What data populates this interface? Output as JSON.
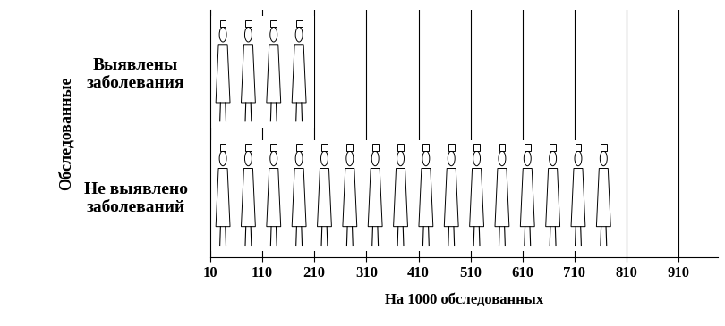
{
  "chart_data": {
    "type": "bar",
    "orientation": "horizontal",
    "categories": [
      "Выявлены\nзаболевания",
      "Не выявлено\nзаболеваний"
    ],
    "values": [
      210,
      790
    ],
    "color": "#ffffff",
    "x_label": "На 1000 обследованных",
    "y_label": "Обследованные",
    "xlim": [
      10,
      985
    ],
    "xticks": [
      10,
      110,
      210,
      310,
      410,
      510,
      610,
      710,
      810,
      910
    ],
    "grid": true
  }
}
